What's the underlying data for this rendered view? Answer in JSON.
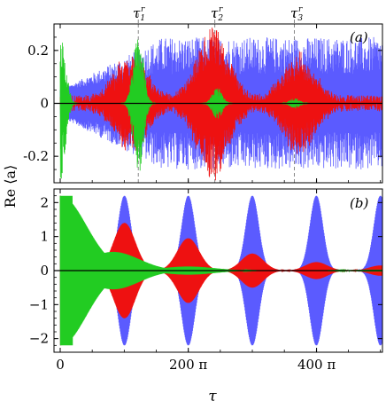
{
  "chart_data": [
    {
      "panel": "(a)",
      "type": "line",
      "xlim": [
        0,
        1580
      ],
      "ylim": [
        -0.3,
        0.3
      ],
      "yticks": [
        {
          "value": 0.2,
          "label": "0.2"
        },
        {
          "value": 0.0,
          "label": "0"
        },
        {
          "value": -0.2,
          "label": "-0.2"
        }
      ],
      "series": [
        {
          "color": "#5b5bff",
          "kind": "revival",
          "envelope_base": 0.05,
          "noise_amp": 0.2
        },
        {
          "color": "#ee1111",
          "kind": "revival",
          "envelope_peaks": [
            {
              "x": 345,
              "amp": 0.17
            },
            {
              "x": 750,
              "amp": 0.27
            },
            {
              "x": 1170,
              "amp": 0.17
            }
          ]
        },
        {
          "color": "#22cc22",
          "kind": "revival",
          "envelope_peaks": [
            {
              "x": 0,
              "amp": 0.3
            },
            {
              "x": 383,
              "amp": 0.27
            },
            {
              "x": 770,
              "amp": 0.06
            },
            {
              "x": 1150,
              "amp": 0.02
            }
          ]
        }
      ],
      "markers": [
        {
          "label": "τ₁ʳ",
          "sub": "1",
          "x": 383
        },
        {
          "label": "τ₂ʳ",
          "sub": "2",
          "x": 758
        },
        {
          "label": "τ₃ʳ",
          "sub": "3",
          "x": 1148
        }
      ]
    },
    {
      "panel": "(b)",
      "type": "line",
      "xlim": [
        0,
        1580
      ],
      "ylim": [
        -2.4,
        2.4
      ],
      "yticks": [
        {
          "value": 2,
          "label": "2"
        },
        {
          "value": 1,
          "label": "1"
        },
        {
          "value": 0,
          "label": "0"
        },
        {
          "value": -1,
          "label": "−1"
        },
        {
          "value": -2,
          "label": "−2"
        }
      ],
      "series": [
        {
          "color": "#5b5bff",
          "kind": "revival",
          "envelope_peaks": [
            {
              "x": 0,
              "amp": 2.2
            },
            {
              "x": 315,
              "amp": 2.2
            },
            {
              "x": 628,
              "amp": 2.2
            },
            {
              "x": 942,
              "amp": 2.2
            },
            {
              "x": 1256,
              "amp": 2.2
            },
            {
              "x": 1570,
              "amp": 2.2
            }
          ]
        },
        {
          "color": "#ee1111",
          "kind": "revival",
          "envelope_peaks": [
            {
              "x": 0,
              "amp": 2.2
            },
            {
              "x": 315,
              "amp": 1.4
            },
            {
              "x": 628,
              "amp": 0.95
            },
            {
              "x": 942,
              "amp": 0.5
            },
            {
              "x": 1256,
              "amp": 0.25
            },
            {
              "x": 1570,
              "amp": 0.15
            }
          ]
        },
        {
          "color": "#22cc22",
          "kind": "decay",
          "envelope_peaks": [
            {
              "x": 0,
              "amp": 2.2
            },
            {
              "x": 260,
              "amp": 0.55
            },
            {
              "x": 628,
              "amp": 0.12
            },
            {
              "x": 1570,
              "amp": 0.03
            }
          ]
        }
      ]
    }
  ],
  "x_axis": {
    "label": "τ",
    "ticks": [
      {
        "value": 0,
        "label": "0"
      },
      {
        "value": 628,
        "label": "200 π"
      },
      {
        "value": 1257,
        "label": "400 π"
      }
    ]
  },
  "y_axis": {
    "label": "Re ⟨a⟩"
  },
  "panel_labels": {
    "a": "(a)",
    "b": "(b)"
  },
  "tau_labels": {
    "t1": "τ",
    "t1_sub": "1",
    "t1_sup": "r",
    "t2": "τ",
    "t2_sub": "2",
    "t2_sup": "r",
    "t3": "τ",
    "t3_sub": "3",
    "t3_sup": "r"
  }
}
